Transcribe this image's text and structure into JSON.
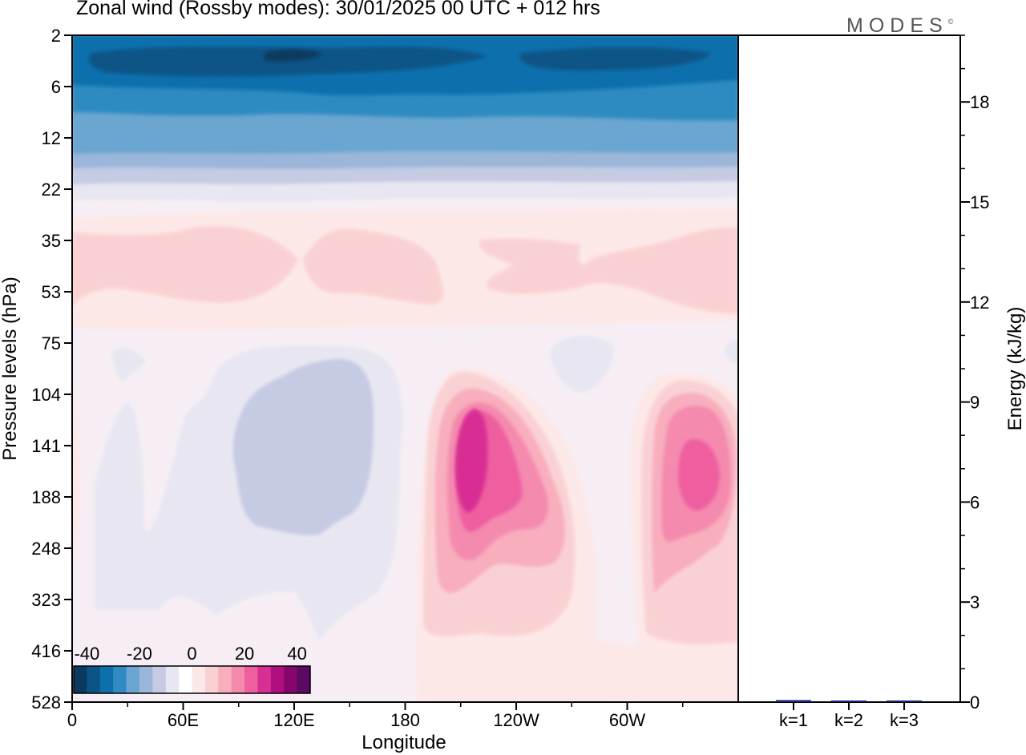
{
  "header": {
    "title": "Zonal wind (Rossby modes):  30/01/2025  00 UTC  + 012 hrs",
    "brand": "MODES",
    "brand_mark": "©"
  },
  "colors": {
    "scale": [
      "#0b3a5e",
      "#0c5486",
      "#0d70ad",
      "#2f8bc1",
      "#6aa6d0",
      "#9ab6d9",
      "#c4cbe3",
      "#e8e6f1",
      "#ffffff",
      "#fde8e8",
      "#fad1d3",
      "#f8aebd",
      "#f48aae",
      "#ef5fa0",
      "#d82f94",
      "#b0107f",
      "#86066e",
      "#5a0a63"
    ],
    "field_background": "#f6eef4",
    "bar": "#1a237e"
  },
  "chart_data": [
    {
      "type": "heatmap",
      "title": "Zonal wind (Rossby modes):  30/01/2025  00 UTC  + 012 hrs",
      "xlabel": "Longitude",
      "ylabel": "Pressure levels (hPa)",
      "x_ticks": [
        "0",
        "60E",
        "120E",
        "180",
        "120W",
        "60W"
      ],
      "x_range": [
        0,
        360
      ],
      "y_ticks": [
        "2",
        "6",
        "12",
        "22",
        "35",
        "53",
        "75",
        "104",
        "141",
        "188",
        "248",
        "323",
        "416",
        "528"
      ],
      "y_reversed": true,
      "colorbar": {
        "labels": [
          "-40",
          "-20",
          "0",
          "20",
          "40"
        ],
        "range": [
          -45,
          45
        ],
        "step": 5
      },
      "regions": [
        {
          "kind": "jet_core",
          "lon": 212,
          "level": "141-188",
          "value": 40
        },
        {
          "kind": "jet_core",
          "lon": 340,
          "level": "141-188",
          "value": 35
        },
        {
          "kind": "easterly_core",
          "lon": 105,
          "level": "104-248",
          "value": -15
        },
        {
          "kind": "strong_easterly_band",
          "level": "2-6",
          "value": -40
        }
      ]
    },
    {
      "type": "bar",
      "ylabel": "Energy (kJ/kg)",
      "categories": [
        "k=1",
        "k=2",
        "k=3"
      ],
      "values": [
        0.06,
        0.03,
        0.02
      ],
      "ylim": [
        0,
        20
      ],
      "y_ticks": [
        "0",
        "3",
        "6",
        "9",
        "12",
        "15",
        "18"
      ]
    }
  ]
}
